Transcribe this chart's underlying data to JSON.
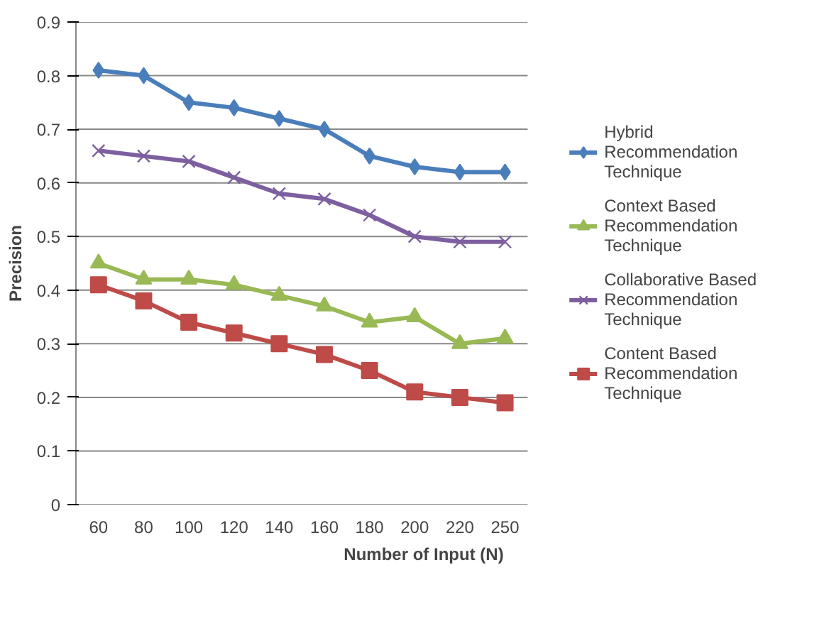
{
  "chart_data": {
    "type": "line",
    "xlabel": "Number of Input (N)",
    "ylabel": "Precision",
    "categories": [
      "60",
      "80",
      "100",
      "120",
      "140",
      "160",
      "180",
      "200",
      "220",
      "250"
    ],
    "ylim": [
      0,
      0.9
    ],
    "yticks": [
      0,
      0.1,
      0.2,
      0.3,
      0.4,
      0.5,
      0.6,
      0.7,
      0.8,
      0.9
    ],
    "grid": "y",
    "legend": "right",
    "line_style": "solid",
    "series": [
      {
        "name": "Hybrid Recommendation Technique",
        "color": "#4a7ebb",
        "marker": "diamond",
        "values": [
          0.81,
          0.8,
          0.75,
          0.74,
          0.72,
          0.7,
          0.65,
          0.63,
          0.62,
          0.62
        ]
      },
      {
        "name": "Context Based Recommendation Technique",
        "color": "#98b954",
        "marker": "triangle",
        "values": [
          0.45,
          0.42,
          0.42,
          0.41,
          0.39,
          0.37,
          0.34,
          0.35,
          0.3,
          0.31
        ]
      },
      {
        "name": "Collaborative Based Recommendation Technique",
        "color": "#7d5fa0",
        "marker": "x",
        "values": [
          0.66,
          0.65,
          0.64,
          0.61,
          0.58,
          0.57,
          0.54,
          0.5,
          0.49,
          0.49
        ]
      },
      {
        "name": "Content Based Recommendation Technique",
        "color": "#be4b48",
        "marker": "square",
        "values": [
          0.41,
          0.38,
          0.34,
          0.32,
          0.3,
          0.28,
          0.25,
          0.21,
          0.2,
          0.19
        ]
      }
    ]
  }
}
